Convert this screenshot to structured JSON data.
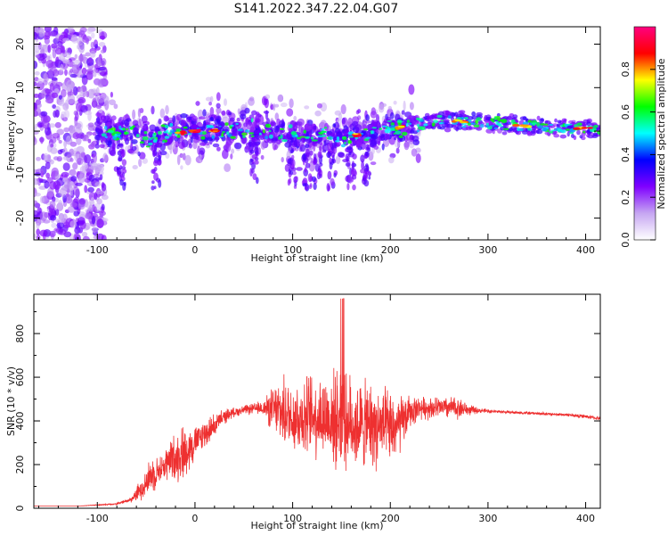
{
  "title": "S141.2022.347.22.04.G07",
  "chart_data": [
    {
      "type": "heatmap",
      "xlabel": "Height of straight line (km)",
      "ylabel": "Frequency (Hz)",
      "xlim": [
        -165,
        415
      ],
      "ylim": [
        -25,
        24
      ],
      "xticks": [
        -100,
        0,
        100,
        200,
        300,
        400
      ],
      "yticks": [
        -20,
        -10,
        0,
        10,
        20
      ],
      "grid": false,
      "colorbar": {
        "label": "Normalized spectral amplitude",
        "range": [
          0.0,
          1.0
        ],
        "ticks": [
          0.0,
          0.2,
          0.4,
          0.6,
          0.8
        ],
        "tick_labels": [
          "0.0",
          "0.2",
          "0.4",
          "0.6",
          "0.8"
        ],
        "colors": [
          "#ffffff",
          "#c6a6f2",
          "#7f00ff",
          "#0000ff",
          "#00ffff",
          "#00ff00",
          "#ffff00",
          "#ff0000",
          "#ff0080"
        ]
      },
      "ridge": [
        {
          "x": -100,
          "freq": 0.0
        },
        {
          "x": -50,
          "freq": -1.5
        },
        {
          "x": 0,
          "freq": 0.0
        },
        {
          "x": 50,
          "freq": 0.5
        },
        {
          "x": 100,
          "freq": -1.0
        },
        {
          "x": 150,
          "freq": -1.5
        },
        {
          "x": 200,
          "freq": 0.5
        },
        {
          "x": 250,
          "freq": 2.5
        },
        {
          "x": 300,
          "freq": 2.0
        },
        {
          "x": 350,
          "freq": 1.0
        },
        {
          "x": 415,
          "freq": 0.5
        }
      ]
    },
    {
      "type": "line",
      "xlabel": "Height of straight line (km)",
      "ylabel": "SNR (10 * v/v)",
      "xlim": [
        -165,
        415
      ],
      "ylim": [
        0,
        980
      ],
      "xticks": [
        -100,
        0,
        100,
        200,
        300,
        400
      ],
      "yticks": [
        0,
        200,
        400,
        600,
        800
      ],
      "grid": false,
      "line_color": "#ee3030",
      "series": [
        {
          "x": [
            -165,
            -120,
            -80,
            -65,
            -55,
            -45,
            -35,
            -25,
            -10,
            0,
            10,
            20,
            30,
            40,
            50,
            60,
            70,
            80,
            90,
            100,
            110,
            120,
            130,
            140,
            150,
            160,
            170,
            180,
            190,
            200,
            210,
            220,
            230,
            240,
            250,
            260,
            270,
            280,
            290,
            300,
            320,
            340,
            360,
            380,
            400,
            415
          ],
          "y": [
            10,
            10,
            20,
            40,
            90,
            150,
            180,
            220,
            260,
            300,
            340,
            380,
            420,
            440,
            450,
            455,
            460,
            450,
            440,
            420,
            420,
            430,
            420,
            410,
            400,
            390,
            380,
            380,
            370,
            360,
            380,
            440,
            460,
            460,
            460,
            460,
            460,
            450,
            448,
            445,
            440,
            436,
            432,
            428,
            420,
            410
          ],
          "spread": [
            0,
            0,
            5,
            15,
            60,
            100,
            70,
            120,
            150,
            90,
            80,
            60,
            40,
            25,
            25,
            30,
            40,
            130,
            180,
            200,
            210,
            220,
            240,
            250,
            260,
            250,
            240,
            230,
            220,
            200,
            160,
            90,
            60,
            60,
            60,
            60,
            60,
            30,
            15,
            10,
            8,
            8,
            8,
            8,
            10,
            10
          ]
        }
      ]
    }
  ]
}
